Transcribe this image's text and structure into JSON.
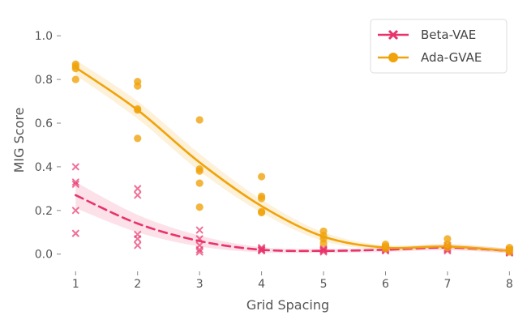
{
  "chart_data": {
    "type": "scatter",
    "title": "",
    "xlabel": "Grid Spacing",
    "ylabel": "MIG Score",
    "xlim": [
      0.8,
      8.1
    ],
    "ylim": [
      -0.09,
      1.06
    ],
    "xticks": [
      1,
      2,
      3,
      4,
      5,
      6,
      7,
      8
    ],
    "xtick_labels": [
      "1",
      "2",
      "3",
      "4",
      "5",
      "6",
      "7",
      "8"
    ],
    "yticks": [
      0.0,
      0.2,
      0.4,
      0.6,
      0.8,
      1.0
    ],
    "ytick_labels": [
      "0.0",
      "0.2",
      "0.4",
      "0.6",
      "0.8",
      "1.0"
    ],
    "grid": false,
    "legend_position": "top-right",
    "series": [
      {
        "name": "Beta-VAE",
        "color": "#e8336b",
        "marker": "x",
        "line_style": "dashed",
        "points": [
          [
            1,
            0.4
          ],
          [
            1,
            0.33
          ],
          [
            1,
            0.32
          ],
          [
            1,
            0.2
          ],
          [
            1,
            0.095
          ],
          [
            2,
            0.3
          ],
          [
            2,
            0.27
          ],
          [
            2,
            0.09
          ],
          [
            2,
            0.07
          ],
          [
            2,
            0.04
          ],
          [
            3,
            0.11
          ],
          [
            3,
            0.07
          ],
          [
            3,
            0.04
          ],
          [
            3,
            0.02
          ],
          [
            3,
            0.01
          ],
          [
            4,
            0.03
          ],
          [
            4,
            0.025
          ],
          [
            4,
            0.02
          ],
          [
            4,
            0.018
          ],
          [
            4,
            0.015
          ],
          [
            5,
            0.025
          ],
          [
            5,
            0.02
          ],
          [
            5,
            0.018
          ],
          [
            5,
            0.015
          ],
          [
            5,
            0.01
          ],
          [
            6,
            0.03
          ],
          [
            6,
            0.025
          ],
          [
            6,
            0.02
          ],
          [
            6,
            0.018
          ],
          [
            6,
            0.015
          ],
          [
            7,
            0.04
          ],
          [
            7,
            0.03
          ],
          [
            7,
            0.025
          ],
          [
            7,
            0.02
          ],
          [
            7,
            0.015
          ],
          [
            8,
            0.02
          ],
          [
            8,
            0.015
          ],
          [
            8,
            0.01
          ],
          [
            8,
            0.008
          ],
          [
            8,
            0.005
          ]
        ],
        "trend": [
          [
            1,
            0.27
          ],
          [
            2,
            0.14
          ],
          [
            3,
            0.06
          ],
          [
            4,
            0.02
          ],
          [
            5,
            0.015
          ],
          [
            6,
            0.02
          ],
          [
            7,
            0.03
          ],
          [
            8,
            0.015
          ]
        ],
        "band": [
          [
            1,
            0.21,
            0.33
          ],
          [
            2,
            0.1,
            0.18
          ],
          [
            3,
            0.035,
            0.085
          ],
          [
            4,
            0.008,
            0.032
          ],
          [
            5,
            0.006,
            0.024
          ],
          [
            6,
            0.01,
            0.03
          ],
          [
            7,
            0.018,
            0.042
          ],
          [
            8,
            0.004,
            0.026
          ]
        ]
      },
      {
        "name": "Ada-GVAE",
        "color": "#f0a30a",
        "marker": "o",
        "line_style": "solid",
        "points": [
          [
            1,
            0.87
          ],
          [
            1,
            0.86
          ],
          [
            1,
            0.85
          ],
          [
            1,
            0.8
          ],
          [
            2,
            0.79
          ],
          [
            2,
            0.77
          ],
          [
            2,
            0.665
          ],
          [
            2,
            0.66
          ],
          [
            2,
            0.53
          ],
          [
            3,
            0.615
          ],
          [
            3,
            0.39
          ],
          [
            3,
            0.38
          ],
          [
            3,
            0.325
          ],
          [
            3,
            0.215
          ],
          [
            4,
            0.355
          ],
          [
            4,
            0.265
          ],
          [
            4,
            0.255
          ],
          [
            4,
            0.195
          ],
          [
            4,
            0.19
          ],
          [
            5,
            0.105
          ],
          [
            5,
            0.085
          ],
          [
            5,
            0.07
          ],
          [
            5,
            0.05
          ],
          [
            6,
            0.045
          ],
          [
            6,
            0.035
          ],
          [
            6,
            0.025
          ],
          [
            7,
            0.07
          ],
          [
            7,
            0.045
          ],
          [
            7,
            0.03
          ],
          [
            8,
            0.03
          ],
          [
            8,
            0.02
          ],
          [
            8,
            0.01
          ]
        ],
        "trend": [
          [
            1,
            0.855
          ],
          [
            2,
            0.66
          ],
          [
            3,
            0.42
          ],
          [
            4,
            0.22
          ],
          [
            5,
            0.08
          ],
          [
            6,
            0.03
          ],
          [
            7,
            0.035
          ],
          [
            8,
            0.015
          ]
        ],
        "band": [
          [
            1,
            0.82,
            0.89
          ],
          [
            2,
            0.62,
            0.7
          ],
          [
            3,
            0.38,
            0.46
          ],
          [
            4,
            0.19,
            0.25
          ],
          [
            5,
            0.06,
            0.1
          ],
          [
            6,
            0.02,
            0.04
          ],
          [
            7,
            0.022,
            0.048
          ],
          [
            8,
            0.006,
            0.024
          ]
        ]
      }
    ]
  }
}
